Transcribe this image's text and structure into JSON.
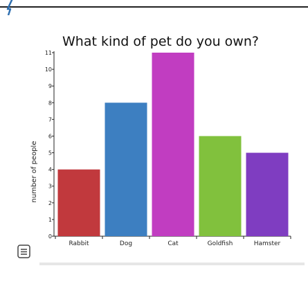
{
  "chart_data": {
    "type": "bar",
    "title": "What kind of pet do you own?",
    "ylabel": "number of people",
    "xlabel": "",
    "categories": [
      "Rabbit",
      "Dog",
      "Cat",
      "Goldfish",
      "Hamster"
    ],
    "values": [
      4,
      8,
      11,
      6,
      5
    ],
    "colors": [
      "#c1393d",
      "#3d7fc1",
      "#c13dc1",
      "#81c13d",
      "#7f3dc1"
    ],
    "ylim": [
      0,
      11
    ],
    "yticks": [
      0,
      1,
      2,
      3,
      4,
      5,
      6,
      7,
      8,
      9,
      10,
      11
    ],
    "grid": false,
    "legend": "none"
  },
  "ui": {
    "menu_icon": "menu-icon"
  }
}
